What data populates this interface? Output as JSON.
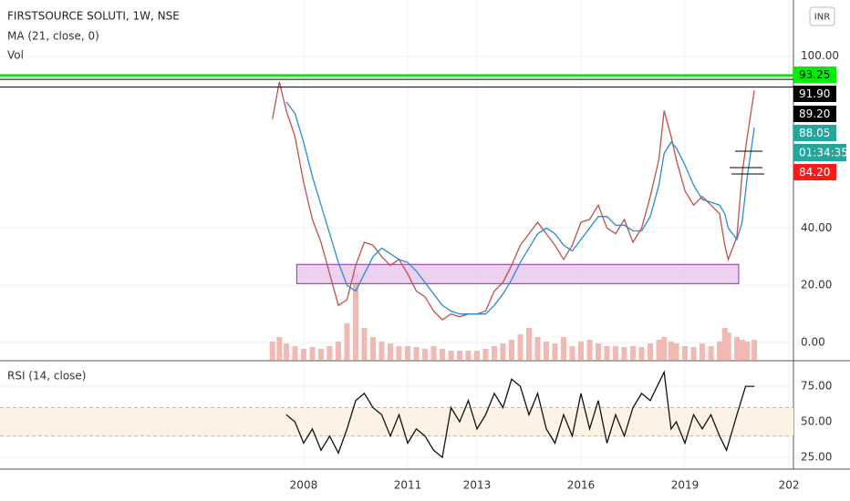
{
  "chart_data": [
    {
      "type": "line",
      "title": "FIRSTSOURCE SOLUTI, 1W, NSE",
      "currency": "INR",
      "x": [
        2007.1,
        2007.3,
        2007.5,
        2007.75,
        2008.0,
        2008.25,
        2008.5,
        2008.75,
        2009.0,
        2009.25,
        2009.5,
        2009.75,
        2010.0,
        2010.25,
        2010.5,
        2010.75,
        2011.0,
        2011.25,
        2011.5,
        2011.75,
        2012.0,
        2012.25,
        2012.5,
        2012.75,
        2013.0,
        2013.25,
        2013.5,
        2013.75,
        2014.0,
        2014.25,
        2014.5,
        2014.75,
        2015.0,
        2015.25,
        2015.5,
        2015.75,
        2016.0,
        2016.25,
        2016.5,
        2016.75,
        2017.0,
        2017.25,
        2017.5,
        2017.75,
        2018.0,
        2018.25,
        2018.4,
        2018.6,
        2018.75,
        2019.0,
        2019.25,
        2019.5,
        2019.75,
        2020.0,
        2020.15,
        2020.25,
        2020.5,
        2020.65,
        2020.8,
        2021.0
      ],
      "series": [
        {
          "color": "#c0504d",
          "values": [
            78,
            91,
            81,
            72,
            56,
            43,
            35,
            24,
            13,
            15,
            27,
            35,
            34,
            30,
            27,
            29,
            24,
            18,
            16,
            11,
            8,
            10,
            9,
            10,
            10,
            11,
            18,
            21,
            27,
            34,
            38,
            42,
            38,
            34,
            29,
            34,
            42,
            43,
            48,
            40,
            38,
            43,
            35,
            40,
            51,
            64,
            81,
            72,
            64,
            53,
            48,
            51,
            48,
            45,
            34,
            29,
            37,
            59,
            72,
            88.05
          ]
        },
        {
          "name": "MA (21, close, 0)",
          "color": "#2a8bd8",
          "values": [
            null,
            null,
            84,
            80,
            70,
            58,
            48,
            38,
            28,
            20,
            18,
            24,
            30,
            33,
            31,
            29,
            28,
            25,
            21,
            17,
            13,
            11,
            10,
            10,
            10,
            10,
            13,
            17,
            22,
            28,
            33,
            38,
            40,
            38,
            34,
            32,
            36,
            40,
            44,
            44,
            41,
            41,
            39,
            39,
            44,
            55,
            66,
            70,
            68,
            62,
            55,
            50,
            49,
            48,
            45,
            40,
            36,
            42,
            58,
            75
          ]
        }
      ],
      "volume": {
        "name": "Vol",
        "color": "#f2b8b2",
        "vlim": [
          0,
          100
        ],
        "values": [
          20,
          25,
          18,
          15,
          12,
          14,
          12,
          15,
          20,
          40,
          95,
          35,
          25,
          20,
          18,
          15,
          15,
          14,
          12,
          15,
          12,
          10,
          10,
          10,
          10,
          12,
          15,
          18,
          22,
          28,
          35,
          25,
          20,
          18,
          25,
          15,
          20,
          22,
          18,
          15,
          15,
          14,
          15,
          14,
          18,
          22,
          25,
          20,
          18,
          15,
          14,
          18,
          15,
          20,
          35,
          30,
          25,
          22,
          20,
          22
        ]
      },
      "zone": {
        "x": [
          2007.8,
          2020.55
        ],
        "y": [
          20.6,
          27.3
        ]
      },
      "price_labels": [
        {
          "value": 93.25,
          "label": "93.25",
          "color": "#00ee00",
          "hline": true
        },
        {
          "value": 91.9,
          "label": "91.90",
          "color": "#000000",
          "hline": true
        },
        {
          "value": 89.2,
          "label": "89.20",
          "color": "#000000",
          "hline": true
        },
        {
          "value": 88.05,
          "label": "88.05",
          "color": "#26a69a",
          "hline": false
        },
        {
          "value": 84.2,
          "label": "84.20",
          "color": "#ff1a1a",
          "hline": false
        }
      ],
      "countdown": "01:34:35",
      "ylim": [
        -6,
        118
      ],
      "yticks": [
        {
          "value": 0,
          "label": "0.00"
        },
        {
          "value": 20,
          "label": "20.00"
        },
        {
          "value": 40,
          "label": "40.00"
        },
        {
          "value": 100,
          "label": "100.00"
        }
      ],
      "xlim": [
        1999.24,
        2022.13
      ],
      "xticks": [
        2008,
        2011,
        2013,
        2016,
        2019,
        {
          "value": 2022,
          "label": "202"
        }
      ],
      "grid": true
    },
    {
      "type": "line",
      "title": "RSI (14, close)",
      "x": [
        2007.5,
        2007.75,
        2008.0,
        2008.25,
        2008.5,
        2008.75,
        2009.0,
        2009.25,
        2009.5,
        2009.75,
        2010.0,
        2010.25,
        2010.5,
        2010.75,
        2011.0,
        2011.25,
        2011.5,
        2011.75,
        2012.0,
        2012.25,
        2012.5,
        2012.75,
        2013.0,
        2013.25,
        2013.5,
        2013.75,
        2014.0,
        2014.25,
        2014.5,
        2014.75,
        2015.0,
        2015.25,
        2015.5,
        2015.75,
        2016.0,
        2016.25,
        2016.5,
        2016.75,
        2017.0,
        2017.25,
        2017.5,
        2017.75,
        2018.0,
        2018.4,
        2018.6,
        2018.75,
        2019.0,
        2019.25,
        2019.5,
        2019.75,
        2020.0,
        2020.2,
        2020.5,
        2020.75,
        2021.0
      ],
      "series": [
        {
          "color": "#111111",
          "values": [
            55,
            50,
            35,
            45,
            30,
            40,
            28,
            45,
            65,
            70,
            60,
            55,
            40,
            55,
            35,
            45,
            40,
            30,
            25,
            60,
            50,
            65,
            45,
            55,
            70,
            60,
            80,
            75,
            55,
            70,
            45,
            35,
            55,
            40,
            70,
            45,
            65,
            35,
            55,
            40,
            60,
            70,
            65,
            85,
            45,
            50,
            35,
            55,
            45,
            55,
            40,
            30,
            55,
            75,
            75
          ]
        }
      ],
      "band": [
        40,
        60
      ],
      "ylim": [
        16.7,
        91.7
      ],
      "yticks": [
        {
          "value": 25,
          "label": "25.00"
        },
        {
          "value": 50,
          "label": "50.00"
        },
        {
          "value": 75,
          "label": "75.00"
        }
      ],
      "grid": true
    }
  ]
}
